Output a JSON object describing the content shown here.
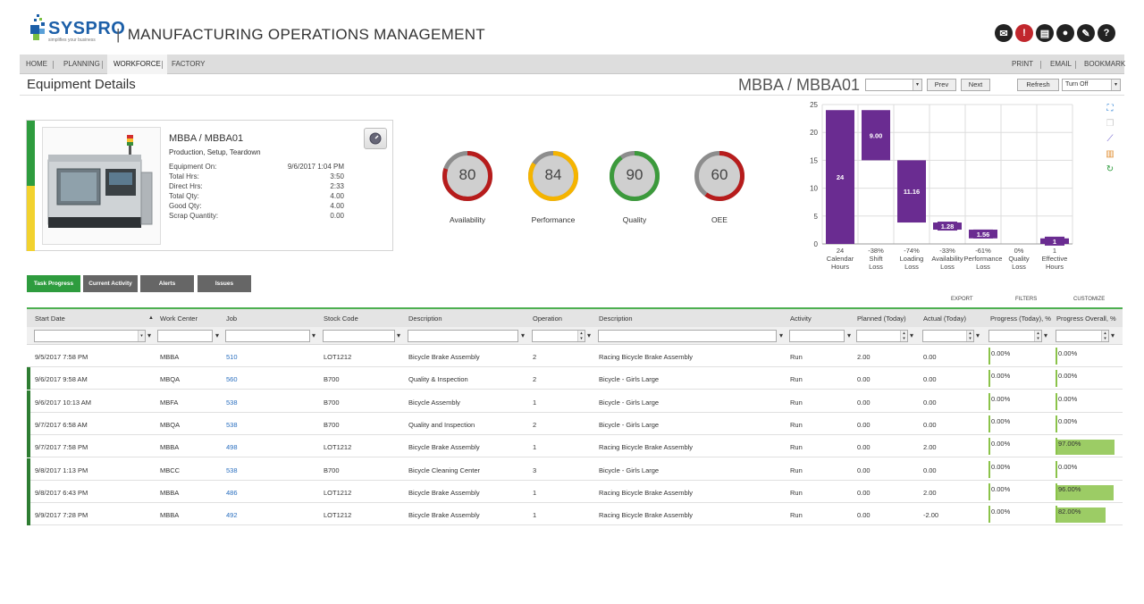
{
  "header": {
    "logo_text": "SYSPRO",
    "logo_tagline": "simplifies your business",
    "title_sep": "|",
    "title": "MANUFACTURING OPERATIONS MANAGEMENT",
    "icons": [
      "mail-icon",
      "alert-icon",
      "document-icon",
      "user-icon",
      "tools-icon",
      "help-icon"
    ]
  },
  "nav": {
    "items": [
      "HOME",
      "PLANNING",
      "WORKFORCE",
      "FACTORY"
    ],
    "active": "WORKFORCE",
    "right_items": [
      "PRINT",
      "EMAIL",
      "BOOKMARK"
    ]
  },
  "title_row": {
    "page_title": "Equipment Details",
    "equipment_id": "MBBA / MBBA01",
    "selector_value": "",
    "prev_label": "Prev",
    "next_label": "Next",
    "refresh_label": "Refresh",
    "auto_refresh_value": "Turn Off"
  },
  "card": {
    "title": "MBBA / MBBA01",
    "subtitle": "Production, Setup, Teardown",
    "rows": [
      {
        "label": "Equipment On:",
        "value": "9/6/2017 1:04 PM"
      },
      {
        "label": "Total Hrs:",
        "value": "3:50"
      },
      {
        "label": "Direct Hrs:",
        "value": "2:33"
      },
      {
        "label": "Total Qty:",
        "value": "4.00"
      },
      {
        "label": "Good Qty:",
        "value": "4.00"
      },
      {
        "label": "Scrap Quantity:",
        "value": "0.00"
      }
    ]
  },
  "gauges": [
    {
      "label": "Availability",
      "value": "80",
      "fraction": 0.8,
      "color": "#b71c1c"
    },
    {
      "label": "Performance",
      "value": "84",
      "fraction": 0.84,
      "color": "#f5b400"
    },
    {
      "label": "Quality",
      "value": "90",
      "fraction": 0.9,
      "color": "#3c9a3c"
    },
    {
      "label": "OEE",
      "value": "60",
      "fraction": 0.6,
      "color": "#b71c1c"
    }
  ],
  "chart_data": {
    "type": "bar",
    "subtype": "waterfall",
    "color": "#6a2c91",
    "ylim": [
      0,
      25
    ],
    "yticks": [
      0,
      5,
      10,
      15,
      20,
      25
    ],
    "grid": true,
    "categories": [
      [
        "24",
        "Calendar",
        "Hours"
      ],
      [
        "-38%",
        "Shift",
        "Loss"
      ],
      [
        "-74%",
        "Loading",
        "Loss"
      ],
      [
        "-33%",
        "Availability",
        "Loss"
      ],
      [
        "-61%",
        "Performance",
        "Loss"
      ],
      [
        "0%",
        "Quality",
        "Loss"
      ],
      [
        "1",
        "Effective",
        "Hours"
      ]
    ],
    "bars": [
      {
        "base": 0,
        "top": 24,
        "label": "24"
      },
      {
        "base": 15,
        "top": 24,
        "label": "9.00"
      },
      {
        "base": 3.84,
        "top": 15,
        "label": "11.16"
      },
      {
        "base": 2.56,
        "top": 3.84,
        "label": "1.28"
      },
      {
        "base": 1,
        "top": 2.56,
        "label": "1.56"
      },
      {
        "base": 1,
        "top": 1,
        "label": ""
      },
      {
        "base": 0,
        "top": 1,
        "label": "1"
      }
    ]
  },
  "tabs": [
    {
      "label": "Task Progress",
      "active": true
    },
    {
      "label": "Current Activity",
      "active": false
    },
    {
      "label": "Alerts",
      "active": false
    },
    {
      "label": "Issues",
      "active": false
    }
  ],
  "grid_actions": [
    "EXPORT",
    "FILTERS",
    "CUSTOMIZE"
  ],
  "grid": {
    "columns": [
      "Start Date",
      "Work Center",
      "Job",
      "Stock Code",
      "Description",
      "Operation",
      "Description",
      "Activity",
      "Planned (Today)",
      "Actual (Today)",
      "Progress (Today), %",
      "Progress Overall, %"
    ],
    "rows": [
      {
        "start": "9/5/2017 7:58 PM",
        "wc": "MBBA",
        "job": "510",
        "stock": "LOT1212",
        "desc": "Bicycle Brake Assembly",
        "op": "2",
        "desc2": "Racing Bicycle Brake Assembly",
        "activity": "Run",
        "planned": "2.00",
        "actual": "0.00",
        "today": "0.00%",
        "today_frac": 0,
        "overall": "0.00%",
        "overall_frac": 0,
        "flag": false
      },
      {
        "start": "9/6/2017 9:58 AM",
        "wc": "MBQA",
        "job": "560",
        "stock": "B700",
        "desc": "Quality & Inspection",
        "op": "2",
        "desc2": "Bicycle - Girls Large",
        "activity": "Run",
        "planned": "0.00",
        "actual": "0.00",
        "today": "0.00%",
        "today_frac": 0,
        "overall": "0.00%",
        "overall_frac": 0,
        "flag": true
      },
      {
        "start": "9/6/2017 10:13 AM",
        "wc": "MBFA",
        "job": "538",
        "stock": "B700",
        "desc": "Bicycle Assembly",
        "op": "1",
        "desc2": "Bicycle - Girls Large",
        "activity": "Run",
        "planned": "0.00",
        "actual": "0.00",
        "today": "0.00%",
        "today_frac": 0,
        "overall": "0.00%",
        "overall_frac": 0,
        "flag": true
      },
      {
        "start": "9/7/2017 6:58 AM",
        "wc": "MBQA",
        "job": "538",
        "stock": "B700",
        "desc": "Quality and Inspection",
        "op": "2",
        "desc2": "Bicycle - Girls Large",
        "activity": "Run",
        "planned": "0.00",
        "actual": "0.00",
        "today": "0.00%",
        "today_frac": 0,
        "overall": "0.00%",
        "overall_frac": 0,
        "flag": true
      },
      {
        "start": "9/7/2017 7:58 PM",
        "wc": "MBBA",
        "job": "498",
        "stock": "LOT1212",
        "desc": "Bicycle Brake Assembly",
        "op": "1",
        "desc2": "Racing Bicycle Brake Assembly",
        "activity": "Run",
        "planned": "0.00",
        "actual": "2.00",
        "today": "0.00%",
        "today_frac": 0,
        "overall": "97.00%",
        "overall_frac": 0.97,
        "flag": true
      },
      {
        "start": "9/8/2017 1:13 PM",
        "wc": "MBCC",
        "job": "538",
        "stock": "B700",
        "desc": "Bicycle Cleaning Center",
        "op": "3",
        "desc2": "Bicycle - Girls Large",
        "activity": "Run",
        "planned": "0.00",
        "actual": "0.00",
        "today": "0.00%",
        "today_frac": 0,
        "overall": "0.00%",
        "overall_frac": 0,
        "flag": true
      },
      {
        "start": "9/8/2017 6:43 PM",
        "wc": "MBBA",
        "job": "486",
        "stock": "LOT1212",
        "desc": "Bicycle Brake Assembly",
        "op": "1",
        "desc2": "Racing Bicycle Brake Assembly",
        "activity": "Run",
        "planned": "0.00",
        "actual": "2.00",
        "today": "0.00%",
        "today_frac": 0,
        "overall": "96.00%",
        "overall_frac": 0.96,
        "flag": true
      },
      {
        "start": "9/9/2017 7:28 PM",
        "wc": "MBBA",
        "job": "492",
        "stock": "LOT1212",
        "desc": "Bicycle Brake Assembly",
        "op": "1",
        "desc2": "Racing Bicycle Brake Assembly",
        "activity": "Run",
        "planned": "0.00",
        "actual": "-2.00",
        "today": "0.00%",
        "today_frac": 0,
        "overall": "82.00%",
        "overall_frac": 0.82,
        "flag": true
      }
    ]
  }
}
